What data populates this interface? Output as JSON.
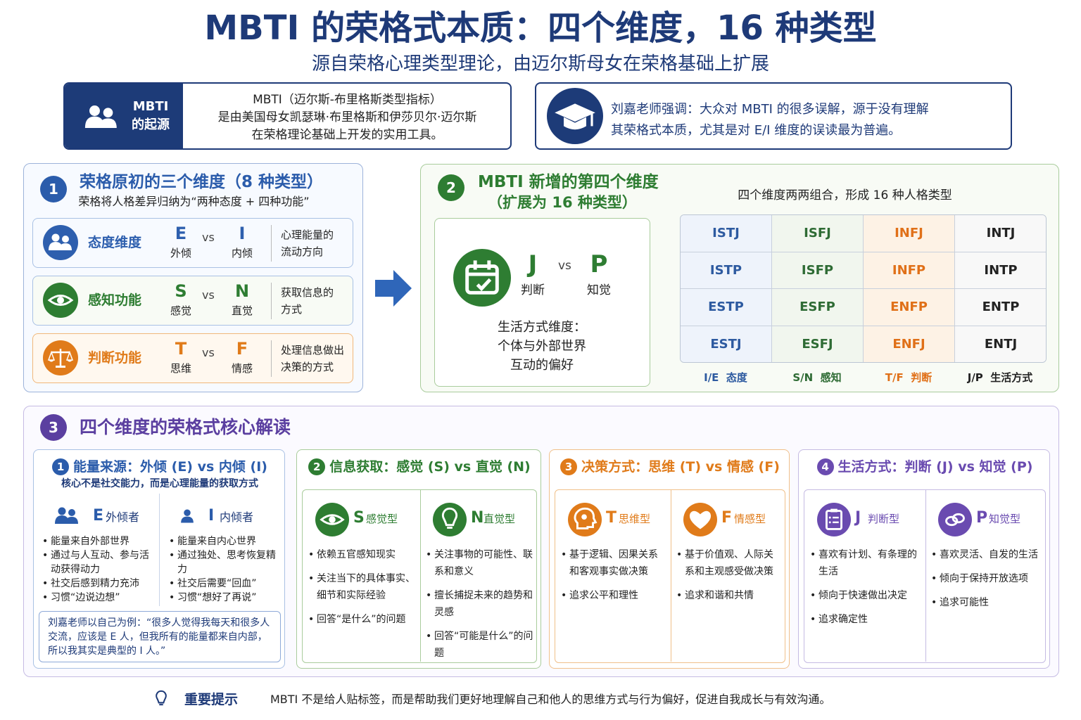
{
  "header": {
    "title": "MBTI 的荣格式本质：四个维度，16 种类型",
    "subtitle": "源自荣格心理类型理论，由迈尔斯母女在荣格基础上扩展"
  },
  "origin": {
    "label": [
      "MBTI",
      "的起源"
    ],
    "text": [
      "MBTI（迈尔斯-布里格斯类型指标）",
      "是由美国母女凯瑟琳·布里格斯和伊莎贝尔·迈尔斯",
      "在荣格理论基础上开发的实用工具。"
    ]
  },
  "emphasis": {
    "text": [
      "刘嘉老师强调：大众对 MBTI 的很多误解，源于没有理解",
      "其荣格式本质，尤其是对 E/I 维度的误读最为普遍。"
    ]
  },
  "section1": {
    "number": "1",
    "title": "荣格原初的三个维度（8 种类型）",
    "subtitle": "荣格将人格差异归纳为“两种态度 + 四种功能”",
    "rows": [
      {
        "name": "态度维度",
        "left": {
          "letter": "E",
          "label": "外倾"
        },
        "vs": "vs",
        "right": {
          "letter": "I",
          "label": "内倾"
        },
        "desc": [
          "心理能量的",
          "流动方向"
        ]
      },
      {
        "name": "感知功能",
        "left": {
          "letter": "S",
          "label": "感觉"
        },
        "vs": "vs",
        "right": {
          "letter": "N",
          "label": "直觉"
        },
        "desc": [
          "获取信息的",
          "方式"
        ]
      },
      {
        "name": "判断功能",
        "left": {
          "letter": "T",
          "label": "思维"
        },
        "vs": "vs",
        "right": {
          "letter": "F",
          "label": "情感"
        },
        "desc": [
          "处理信息做出",
          "决策的方式"
        ]
      }
    ]
  },
  "section2": {
    "number": "2",
    "title": [
      "MBTI 新增的第四个维度",
      "（扩展为 16 种类型）"
    ],
    "left": {
      "letter": "J",
      "label": "判断"
    },
    "vs": "vs",
    "right": {
      "letter": "P",
      "label": "知觉"
    },
    "desc": [
      "生活方式维度：",
      "个体与外部世界",
      "互动的偏好"
    ],
    "grid_caption": "四个维度两两组合，形成 16 种人格类型",
    "types": [
      [
        "ISTJ",
        "ISFJ",
        "INFJ",
        "INTJ"
      ],
      [
        "ISTP",
        "ISFP",
        "INFP",
        "INTP"
      ],
      [
        "ESTP",
        "ESFP",
        "ENFP",
        "ENTP"
      ],
      [
        "ESTJ",
        "ESFJ",
        "ENFJ",
        "ENTJ"
      ]
    ],
    "column_labels": [
      "I/E  态度",
      "S/N  感知",
      "T/F  判断",
      "J/P  生活方式"
    ]
  },
  "section3": {
    "number": "3",
    "title": "四个维度的荣格式核心解读",
    "cards": [
      {
        "number": "1",
        "title": "能量来源：外倾 (E) vs 内倾 (I)",
        "subtitle": "核心不是社交能力，而是心理能量的获取方式",
        "columns": [
          {
            "letter": "E",
            "name": "外倾者",
            "items": [
              "能量来自外部世界",
              "通过与人互动、参与活动获得动力",
              "社交后感到精力充沛",
              "习惯“边说边想”"
            ]
          },
          {
            "letter": "I",
            "name": "内倾者",
            "items": [
              "能量来自内心世界",
              "通过独处、思考恢复精力",
              "社交后需要“回血”",
              "习惯“想好了再说”"
            ]
          }
        ],
        "quote": [
          "刘嘉老师以自己为例：“很多人觉得我每天和很多人",
          "交流，应该是 E 人，但我所有的能量都来自内部，",
          "所以我其实是典型的 I 人。”"
        ]
      },
      {
        "number": "2",
        "title": "信息获取：感觉 (S) vs 直觉 (N)",
        "columns": [
          {
            "letter": "S",
            "name": "感觉型",
            "items": [
              "依赖五官感知现实",
              "关注当下的具体事实、细节和实际经验",
              "回答“是什么”的问题"
            ]
          },
          {
            "letter": "N",
            "name": "直觉型",
            "items": [
              "关注事物的可能性、联系和意义",
              "擅长捕捉未来的趋势和灵感",
              "回答“可能是什么”的问题"
            ]
          }
        ]
      },
      {
        "number": "3",
        "title": "决策方式：思维 (T) vs 情感 (F)",
        "columns": [
          {
            "letter": "T",
            "name": "思维型",
            "items": [
              "基于逻辑、因果关系和客观事实做决策",
              "追求公平和理性"
            ]
          },
          {
            "letter": "F",
            "name": "情感型",
            "items": [
              "基于价值观、人际关系和主观感受做决策",
              "追求和谐和共情"
            ]
          }
        ]
      },
      {
        "number": "4",
        "title": "生活方式：判断 (J) vs 知觉 (P)",
        "columns": [
          {
            "letter": "J",
            "name": "判断型",
            "items": [
              "喜欢有计划、有条理的生活",
              "倾向于快速做出决定",
              "追求确定性"
            ]
          },
          {
            "letter": "P",
            "name": "知觉型",
            "items": [
              "喜欢灵活、自发的生活",
              "倾向于保持开放选项",
              "追求可能性"
            ]
          }
        ]
      }
    ]
  },
  "footer": {
    "label": "重要提示",
    "text": "MBTI 不是给人贴标签，而是帮助我们更好地理解自己和他人的思维方式与行为偏好，促进自我成长与有效沟通。"
  }
}
